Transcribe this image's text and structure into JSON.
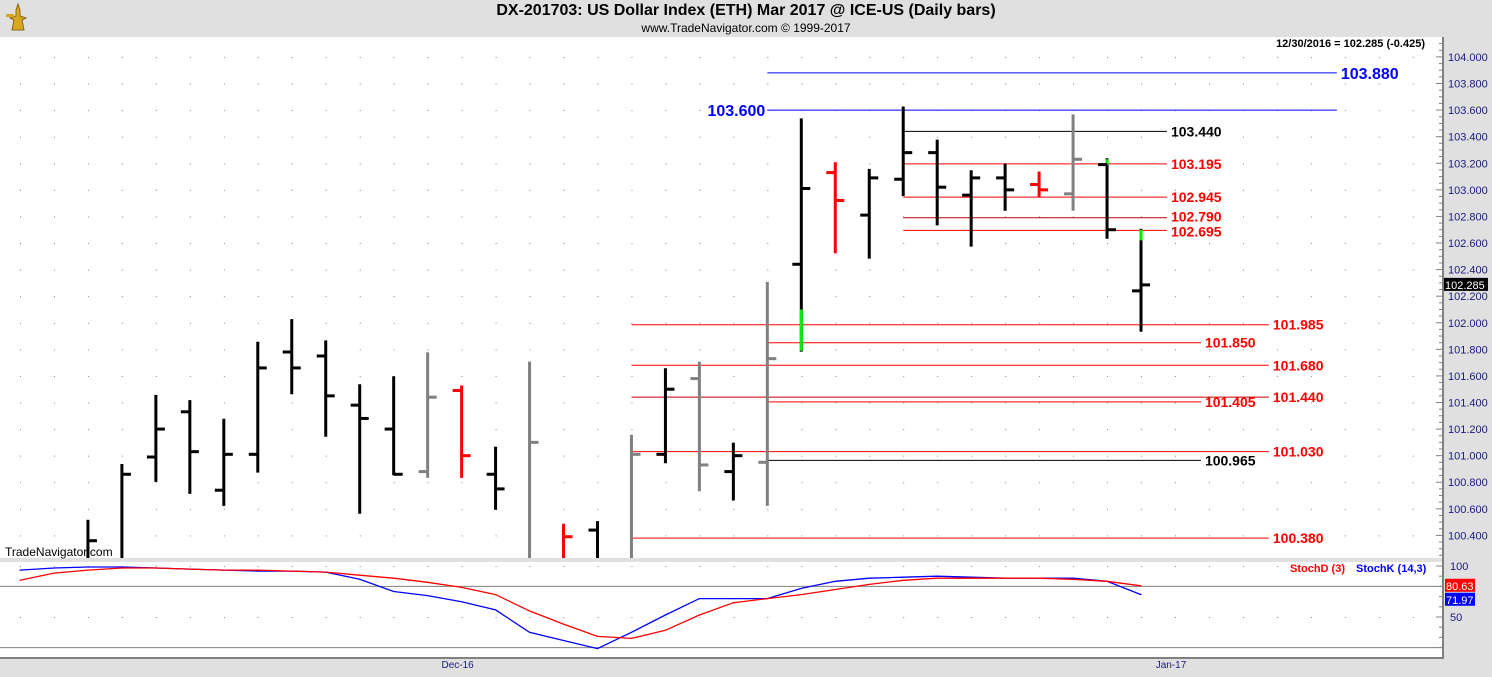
{
  "header": {
    "title": "DX-201703:  US Dollar Index (ETH) Mar 2017 @ ICE-US  (Daily bars)",
    "subtitle": "www.TradeNavigator.com © 1999-2017",
    "last_value": "12/30/2016 = 102.285 (-0.425)",
    "watermark": "TradeNavigator.com",
    "logo_icon": "gold-trophy-figure"
  },
  "colors": {
    "up": "#000000",
    "down": "#ff0000",
    "neutral": "#808080",
    "highlight": "#00ee00",
    "level_red": "#ff0000",
    "level_black": "#000000",
    "level_blue": "#0000ff",
    "stoch_d": "#ff0000",
    "stoch_k": "#0000ff",
    "axis_text": "#1a1a80"
  },
  "chart_data": [
    {
      "type": "ohlc",
      "ylim": [
        100.23,
        104.15
      ],
      "yticks": [
        "100.400",
        "100.600",
        "100.800",
        "101.000",
        "101.200",
        "101.400",
        "101.600",
        "101.800",
        "102.000",
        "102.200",
        "102.400",
        "102.600",
        "102.800",
        "103.000",
        "103.200",
        "103.400",
        "103.600",
        "103.800",
        "104.000"
      ],
      "grid": "dotted",
      "last_price_tag": "102.285",
      "x_ticks": [
        {
          "label": "Dec-16",
          "bar": 13
        },
        {
          "label": "Jan-17",
          "bar": 34
        }
      ],
      "bars": [
        null,
        null,
        {
          "o": null,
          "h": 100.51,
          "l": 100.15,
          "c": 100.36,
          "color": "black"
        },
        {
          "o": null,
          "h": 100.93,
          "l": 100.15,
          "c": 100.86,
          "color": "black"
        },
        {
          "o": 100.99,
          "h": 101.45,
          "l": 100.81,
          "c": 101.2,
          "color": "black"
        },
        {
          "o": 101.33,
          "h": 101.41,
          "l": 100.72,
          "c": 101.03,
          "color": "black"
        },
        {
          "o": 100.74,
          "h": 101.27,
          "l": 100.63,
          "c": 101.01,
          "color": "black"
        },
        {
          "o": 101.01,
          "h": 101.85,
          "l": 100.88,
          "c": 101.66,
          "color": "black"
        },
        {
          "o": 101.78,
          "h": 102.02,
          "l": 101.47,
          "c": 101.66,
          "color": "black"
        },
        {
          "o": 101.75,
          "h": 101.86,
          "l": 101.15,
          "c": 101.45,
          "color": "black"
        },
        {
          "o": 101.38,
          "h": 101.53,
          "l": 100.57,
          "c": 101.28,
          "color": "black"
        },
        {
          "o": 101.2,
          "h": 101.59,
          "l": 100.86,
          "c": 100.86,
          "color": "black"
        },
        {
          "o": 100.88,
          "h": 101.77,
          "l": 100.84,
          "c": 101.44,
          "color": "gray"
        },
        {
          "o": 101.49,
          "h": 101.52,
          "l": 100.84,
          "c": 101.0,
          "color": "red"
        },
        {
          "o": 100.86,
          "h": 101.06,
          "l": 100.6,
          "c": 100.75,
          "color": "black"
        },
        {
          "o": null,
          "h": 101.7,
          "l": 100.15,
          "c": 101.1,
          "color": "gray"
        },
        {
          "o": null,
          "h": 100.48,
          "l": 100.15,
          "c": 100.39,
          "color": "red"
        },
        {
          "o": 100.44,
          "h": 100.5,
          "l": 100.15,
          "c": null,
          "color": "black"
        },
        {
          "o": null,
          "h": 101.15,
          "l": 100.15,
          "c": 101.01,
          "color": "gray"
        },
        {
          "o": 101.01,
          "h": 101.65,
          "l": 100.95,
          "c": 101.5,
          "color": "black"
        },
        {
          "o": 101.58,
          "h": 101.7,
          "l": 100.74,
          "c": 100.93,
          "color": "gray"
        },
        {
          "o": 100.88,
          "h": 101.09,
          "l": 100.67,
          "c": 101.0,
          "color": "black"
        },
        {
          "o": 100.95,
          "h": 102.3,
          "l": 100.63,
          "c": 101.73,
          "color": "gray"
        },
        {
          "o": 102.44,
          "h": 103.53,
          "l": 101.79,
          "c": 103.01,
          "color": "black",
          "green": [
            101.79,
            102.1
          ]
        },
        {
          "o": 103.13,
          "h": 103.2,
          "l": 102.53,
          "c": 102.92,
          "color": "red"
        },
        {
          "o": 102.81,
          "h": 103.15,
          "l": 102.49,
          "c": 103.09,
          "color": "black"
        },
        {
          "o": 103.08,
          "h": 103.62,
          "l": 102.96,
          "c": 103.28,
          "color": "black"
        },
        {
          "o": 103.28,
          "h": 103.37,
          "l": 102.74,
          "c": 103.02,
          "color": "black"
        },
        {
          "o": 102.96,
          "h": 103.14,
          "l": 102.58,
          "c": 103.09,
          "color": "black"
        },
        {
          "o": 103.09,
          "h": 103.19,
          "l": 102.85,
          "c": 103.0,
          "color": "black"
        },
        {
          "o": 103.04,
          "h": 103.13,
          "l": 102.95,
          "c": 103.0,
          "color": "red"
        },
        {
          "o": 102.97,
          "h": 103.56,
          "l": 102.85,
          "c": 103.23,
          "color": "gray"
        },
        {
          "o": 103.19,
          "h": 103.23,
          "l": 102.64,
          "c": 102.7,
          "color": "black",
          "green": [
            103.19,
            103.23
          ]
        },
        {
          "o": 102.24,
          "h": 102.7,
          "l": 101.94,
          "c": 102.285,
          "color": "black",
          "green": [
            102.62,
            102.7
          ]
        }
      ],
      "levels": [
        {
          "value": 103.88,
          "label": "103.880",
          "color": "blue",
          "from_bar": 22,
          "to_bar": 39,
          "label_position": "right"
        },
        {
          "value": 103.6,
          "label": "103.600",
          "color": "blue",
          "from_bar": 22,
          "to_bar": 39,
          "label_position": "left"
        },
        {
          "value": 103.44,
          "label": "103.440",
          "color": "black",
          "from_bar": 26,
          "to_bar": 34,
          "label_position": "right"
        },
        {
          "value": 103.195,
          "label": "103.195",
          "color": "red",
          "from_bar": 26,
          "to_bar": 34,
          "label_position": "right"
        },
        {
          "value": 102.945,
          "label": "102.945",
          "color": "red",
          "from_bar": 26,
          "to_bar": 34,
          "label_position": "right"
        },
        {
          "value": 102.79,
          "label": "102.790",
          "color": "darkred",
          "from_bar": 26,
          "to_bar": 34,
          "label_position": "right"
        },
        {
          "value": 102.695,
          "label": "102.695",
          "color": "red",
          "from_bar": 26,
          "to_bar": 34,
          "label_position": "right"
        },
        {
          "value": 101.985,
          "label": "101.985",
          "color": "red",
          "from_bar": 18,
          "to_bar": 37,
          "label_position": "right"
        },
        {
          "value": 101.85,
          "label": "101.850",
          "color": "red",
          "from_bar": 22,
          "to_bar": 35,
          "label_position": "right"
        },
        {
          "value": 101.68,
          "label": "101.680",
          "color": "red",
          "from_bar": 18,
          "to_bar": 37,
          "label_position": "right"
        },
        {
          "value": 101.44,
          "label": "101.440",
          "color": "darkred",
          "from_bar": 18,
          "to_bar": 37,
          "label_position": "right"
        },
        {
          "value": 101.405,
          "label": "101.405",
          "color": "red",
          "from_bar": 22,
          "to_bar": 35,
          "label_position": "right"
        },
        {
          "value": 101.03,
          "label": "101.030",
          "color": "red",
          "from_bar": 18,
          "to_bar": 37,
          "label_position": "right"
        },
        {
          "value": 100.965,
          "label": "100.965",
          "color": "black",
          "from_bar": 22,
          "to_bar": 35,
          "label_position": "right"
        },
        {
          "value": 100.38,
          "label": "100.380",
          "color": "red",
          "from_bar": 18,
          "to_bar": 37,
          "label_position": "right"
        }
      ]
    },
    {
      "type": "line",
      "ylim": [
        0,
        100
      ],
      "yticks": [
        "100",
        "50"
      ],
      "reference_lines": [
        80,
        20
      ],
      "legend_position": "top-right",
      "series": [
        {
          "name": "StochD (3)",
          "color": "#ff0000",
          "last_label": "80.63",
          "values": [
            86,
            93,
            96,
            98,
            98,
            97,
            96,
            96,
            95,
            94,
            91,
            88,
            84,
            79,
            72,
            56,
            43,
            31,
            29,
            37,
            52,
            64,
            68,
            72,
            77,
            82,
            86,
            88,
            88,
            88,
            88,
            87,
            85,
            80.63
          ]
        },
        {
          "name": "StochK (14,3)",
          "color": "#0000ff",
          "last_label": "71.97",
          "values": [
            96,
            98,
            99,
            99,
            98,
            97,
            96,
            95,
            95,
            94,
            87,
            75,
            71,
            65,
            57,
            35,
            27,
            19,
            35,
            52,
            68,
            68,
            68,
            78,
            85,
            88,
            89,
            90,
            89,
            88,
            88,
            88,
            85,
            71.97
          ]
        }
      ]
    }
  ]
}
